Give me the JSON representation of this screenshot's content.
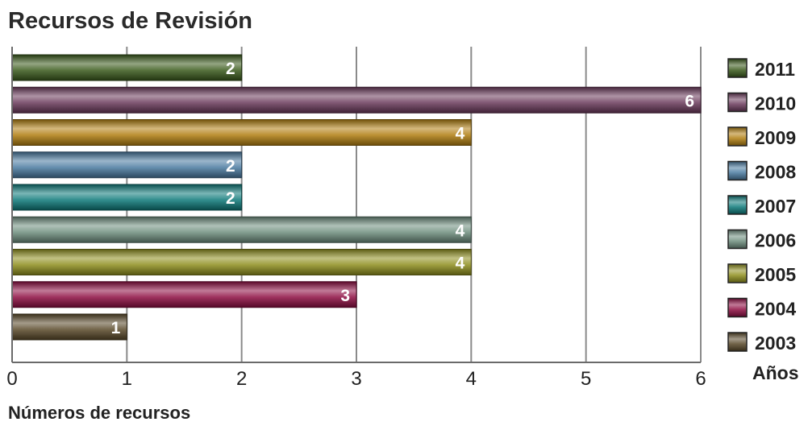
{
  "chart_data": {
    "type": "bar",
    "orientation": "horizontal",
    "title": "Recursos de Revisión",
    "xlabel": "Números de recursos",
    "legend_title": "Años",
    "xlim": [
      0,
      6
    ],
    "x_ticks": [
      "0",
      "1",
      "2",
      "3",
      "4",
      "5",
      "6"
    ],
    "grid": true,
    "legend_position": "right",
    "categories": [
      "2011",
      "2010",
      "2009",
      "2008",
      "2007",
      "2006",
      "2005",
      "2004",
      "2003"
    ],
    "values": [
      2,
      6,
      4,
      2,
      2,
      4,
      4,
      3,
      1
    ],
    "colors": [
      "#3a5a1c",
      "#6b3a5c",
      "#b07e10",
      "#4a7aa0",
      "#0e7a7a",
      "#6e8e7e",
      "#8f8f1e",
      "#8e0e42",
      "#5a4a2a"
    ],
    "data_labels": [
      "2",
      "6",
      "4",
      "2",
      "2",
      "4",
      "4",
      "3",
      "1"
    ]
  }
}
